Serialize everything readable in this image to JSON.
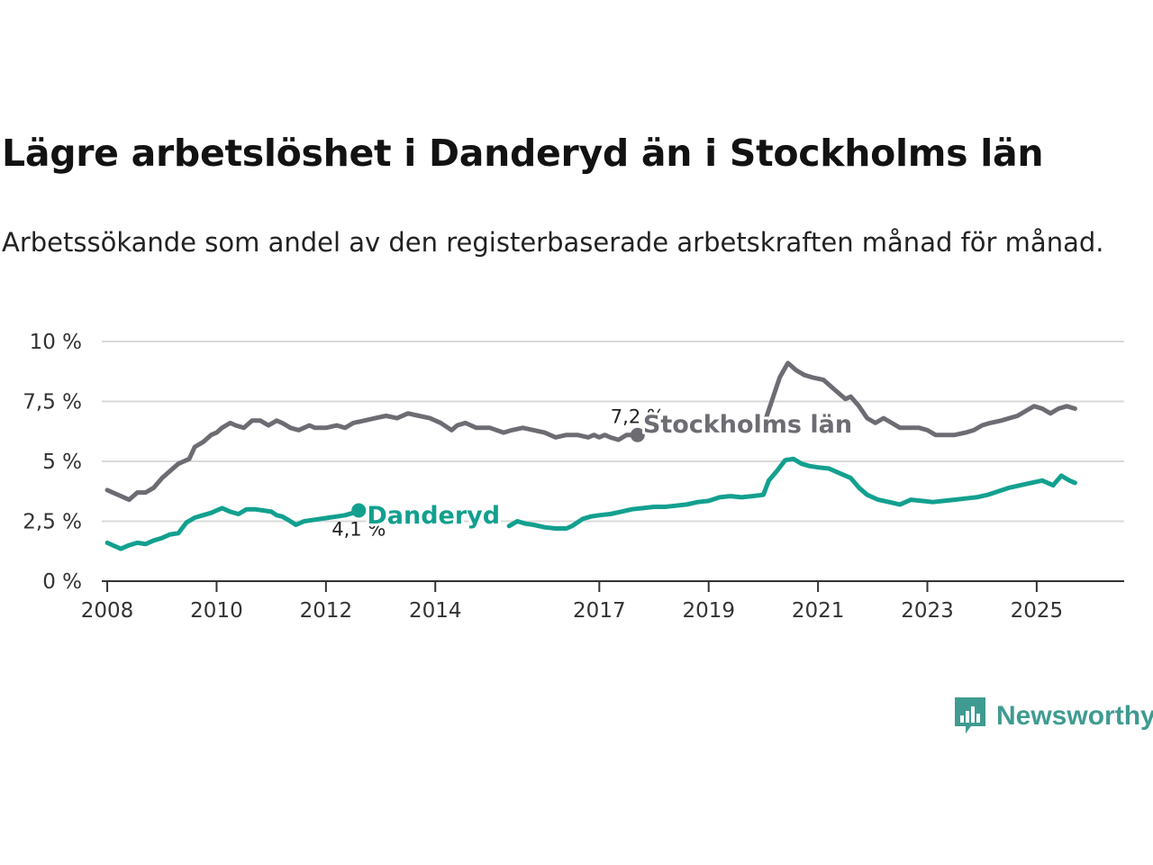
{
  "title": "Lägre arbetslöshet i Danderyd än i Stockholms län",
  "subtitle": "Arbetssökande som andel av den registerbaserade arbetskraften månad för månad.",
  "brand": {
    "name": "Newsworthy",
    "color": "#3f9b91"
  },
  "chart_data": {
    "type": "line",
    "title": "Lägre arbetslöshet i Danderyd än i Stockholms län",
    "xlabel": "",
    "ylabel": "",
    "xlim": [
      2007.9,
      2026.6
    ],
    "ylim": [
      0,
      10
    ],
    "grid": true,
    "y_ticks": [
      {
        "value": 0,
        "label": "0 %"
      },
      {
        "value": 2.5,
        "label": "2,5 %"
      },
      {
        "value": 5,
        "label": "5 %"
      },
      {
        "value": 7.5,
        "label": "7,5 %"
      },
      {
        "value": 10,
        "label": "10 %"
      }
    ],
    "x_ticks": [
      {
        "value": 2008,
        "label": "2008"
      },
      {
        "value": 2010,
        "label": "2010"
      },
      {
        "value": 2012,
        "label": "2012"
      },
      {
        "value": 2014,
        "label": "2014"
      },
      {
        "value": 2017,
        "label": "2017"
      },
      {
        "value": 2019,
        "label": "2019"
      },
      {
        "value": 2021,
        "label": "2021"
      },
      {
        "value": 2023,
        "label": "2023"
      },
      {
        "value": 2025,
        "label": "2025"
      }
    ],
    "series": [
      {
        "name": "Stockholms län",
        "color": "#6d6c73",
        "end_label": "7,2 %",
        "label_anchor": [
          2017.8,
          6.2
        ],
        "x": [
          2008.0,
          2008.1,
          2008.3,
          2008.4,
          2008.55,
          2008.7,
          2008.85,
          2009.0,
          2009.15,
          2009.3,
          2009.5,
          2009.6,
          2009.75,
          2009.9,
          2010.0,
          2010.1,
          2010.25,
          2010.35,
          2010.5,
          2010.65,
          2010.8,
          2010.95,
          2011.1,
          2011.2,
          2011.35,
          2011.5,
          2011.7,
          2011.8,
          2012.0,
          2012.2,
          2012.35,
          2012.5,
          2012.7,
          2012.9,
          2013.1,
          2013.3,
          2013.5,
          2013.7,
          2013.9,
          2014.1,
          2014.3,
          2014.4,
          2014.55,
          2014.75,
          2015.0,
          2015.25,
          2015.4,
          2015.6,
          2015.8,
          2016.0,
          2016.2,
          2016.4,
          2016.6,
          2016.8,
          2016.9,
          2017.0,
          2017.1,
          2017.2,
          2017.35,
          2017.5,
          2017.7
        ],
        "y": [
          3.8,
          3.7,
          3.5,
          3.4,
          3.7,
          3.7,
          3.9,
          4.3,
          4.6,
          4.9,
          5.1,
          5.6,
          5.8,
          6.1,
          6.2,
          6.4,
          6.6,
          6.5,
          6.4,
          6.7,
          6.7,
          6.5,
          6.7,
          6.6,
          6.4,
          6.3,
          6.5,
          6.4,
          6.4,
          6.5,
          6.4,
          6.6,
          6.7,
          6.8,
          6.9,
          6.8,
          7.0,
          6.9,
          6.8,
          6.6,
          6.3,
          6.5,
          6.6,
          6.4,
          6.4,
          6.2,
          6.3,
          6.4,
          6.3,
          6.2,
          6.0,
          6.1,
          6.1,
          6.0,
          6.1,
          6.0,
          6.1,
          6.0,
          5.9,
          6.1,
          6.1
        ]
      },
      {
        "name": "Stockholms län",
        "color": "#6d6c73",
        "x": [
          2020.05,
          2020.3,
          2020.45,
          2020.6,
          2020.75,
          2020.9,
          2021.1,
          2021.3,
          2021.5,
          2021.6,
          2021.75,
          2021.9,
          2022.05,
          2022.2,
          2022.35,
          2022.5,
          2022.7,
          2022.85,
          2023.0,
          2023.15,
          2023.3,
          2023.5,
          2023.7,
          2023.85,
          2024.0,
          2024.15,
          2024.35,
          2024.5,
          2024.65,
          2024.8,
          2024.95,
          2025.1,
          2025.25,
          2025.4,
          2025.55,
          2025.7
        ],
        "y": [
          6.8,
          8.5,
          9.1,
          8.8,
          8.6,
          8.5,
          8.4,
          8.0,
          7.6,
          7.7,
          7.3,
          6.8,
          6.6,
          6.8,
          6.6,
          6.4,
          6.4,
          6.4,
          6.3,
          6.1,
          6.1,
          6.1,
          6.2,
          6.3,
          6.5,
          6.6,
          6.7,
          6.8,
          6.9,
          7.1,
          7.3,
          7.2,
          7.0,
          7.2,
          7.3,
          7.2
        ]
      },
      {
        "name": "Danderyd",
        "color": "#12a08f",
        "end_label": "4,1 %",
        "label_anchor": [
          2012.75,
          2.4
        ],
        "x": [
          2008.0,
          2008.1,
          2008.25,
          2008.4,
          2008.55,
          2008.7,
          2008.85,
          2009.0,
          2009.15,
          2009.3,
          2009.45,
          2009.6,
          2009.75,
          2009.9,
          2010.0,
          2010.1,
          2010.25,
          2010.4,
          2010.55,
          2010.7,
          2010.85,
          2011.0,
          2011.1,
          2011.2,
          2011.35,
          2011.45,
          2011.6,
          2011.75,
          2011.9,
          2012.05,
          2012.2,
          2012.35,
          2012.5,
          2012.6
        ],
        "y": [
          1.6,
          1.5,
          1.35,
          1.5,
          1.6,
          1.55,
          1.7,
          1.8,
          1.95,
          2.0,
          2.45,
          2.65,
          2.75,
          2.85,
          2.95,
          3.05,
          2.9,
          2.8,
          3.0,
          3.0,
          2.95,
          2.9,
          2.75,
          2.7,
          2.5,
          2.35,
          2.5,
          2.55,
          2.6,
          2.65,
          2.7,
          2.75,
          2.85,
          2.95
        ]
      },
      {
        "name": "Danderyd",
        "color": "#12a08f",
        "x": [
          2015.35,
          2015.5,
          2015.65,
          2015.8,
          2016.0,
          2016.2,
          2016.4,
          2016.5,
          2016.7,
          2016.85,
          2017.0,
          2017.2,
          2017.4,
          2017.6,
          2017.8,
          2018.0,
          2018.2,
          2018.4,
          2018.6,
          2018.8,
          2019.0,
          2019.2,
          2019.4,
          2019.6,
          2019.8,
          2020.0,
          2020.1,
          2020.25,
          2020.4,
          2020.55,
          2020.7,
          2020.85,
          2021.0,
          2021.2,
          2021.4,
          2021.6,
          2021.75,
          2021.9,
          2022.1,
          2022.3,
          2022.5,
          2022.7,
          2022.9,
          2023.1,
          2023.3,
          2023.5,
          2023.7,
          2023.9,
          2024.1,
          2024.3,
          2024.5,
          2024.7,
          2024.9,
          2025.1,
          2025.3,
          2025.45,
          2025.6,
          2025.7
        ],
        "y": [
          2.3,
          2.5,
          2.4,
          2.35,
          2.25,
          2.2,
          2.2,
          2.3,
          2.6,
          2.7,
          2.75,
          2.8,
          2.9,
          3.0,
          3.05,
          3.1,
          3.1,
          3.15,
          3.2,
          3.3,
          3.35,
          3.5,
          3.55,
          3.5,
          3.55,
          3.6,
          4.2,
          4.6,
          5.05,
          5.1,
          4.9,
          4.8,
          4.75,
          4.7,
          4.5,
          4.3,
          3.9,
          3.6,
          3.4,
          3.3,
          3.2,
          3.4,
          3.35,
          3.3,
          3.35,
          3.4,
          3.45,
          3.5,
          3.6,
          3.75,
          3.9,
          4.0,
          4.1,
          4.2,
          4.0,
          4.4,
          4.2,
          4.1
        ]
      }
    ]
  }
}
